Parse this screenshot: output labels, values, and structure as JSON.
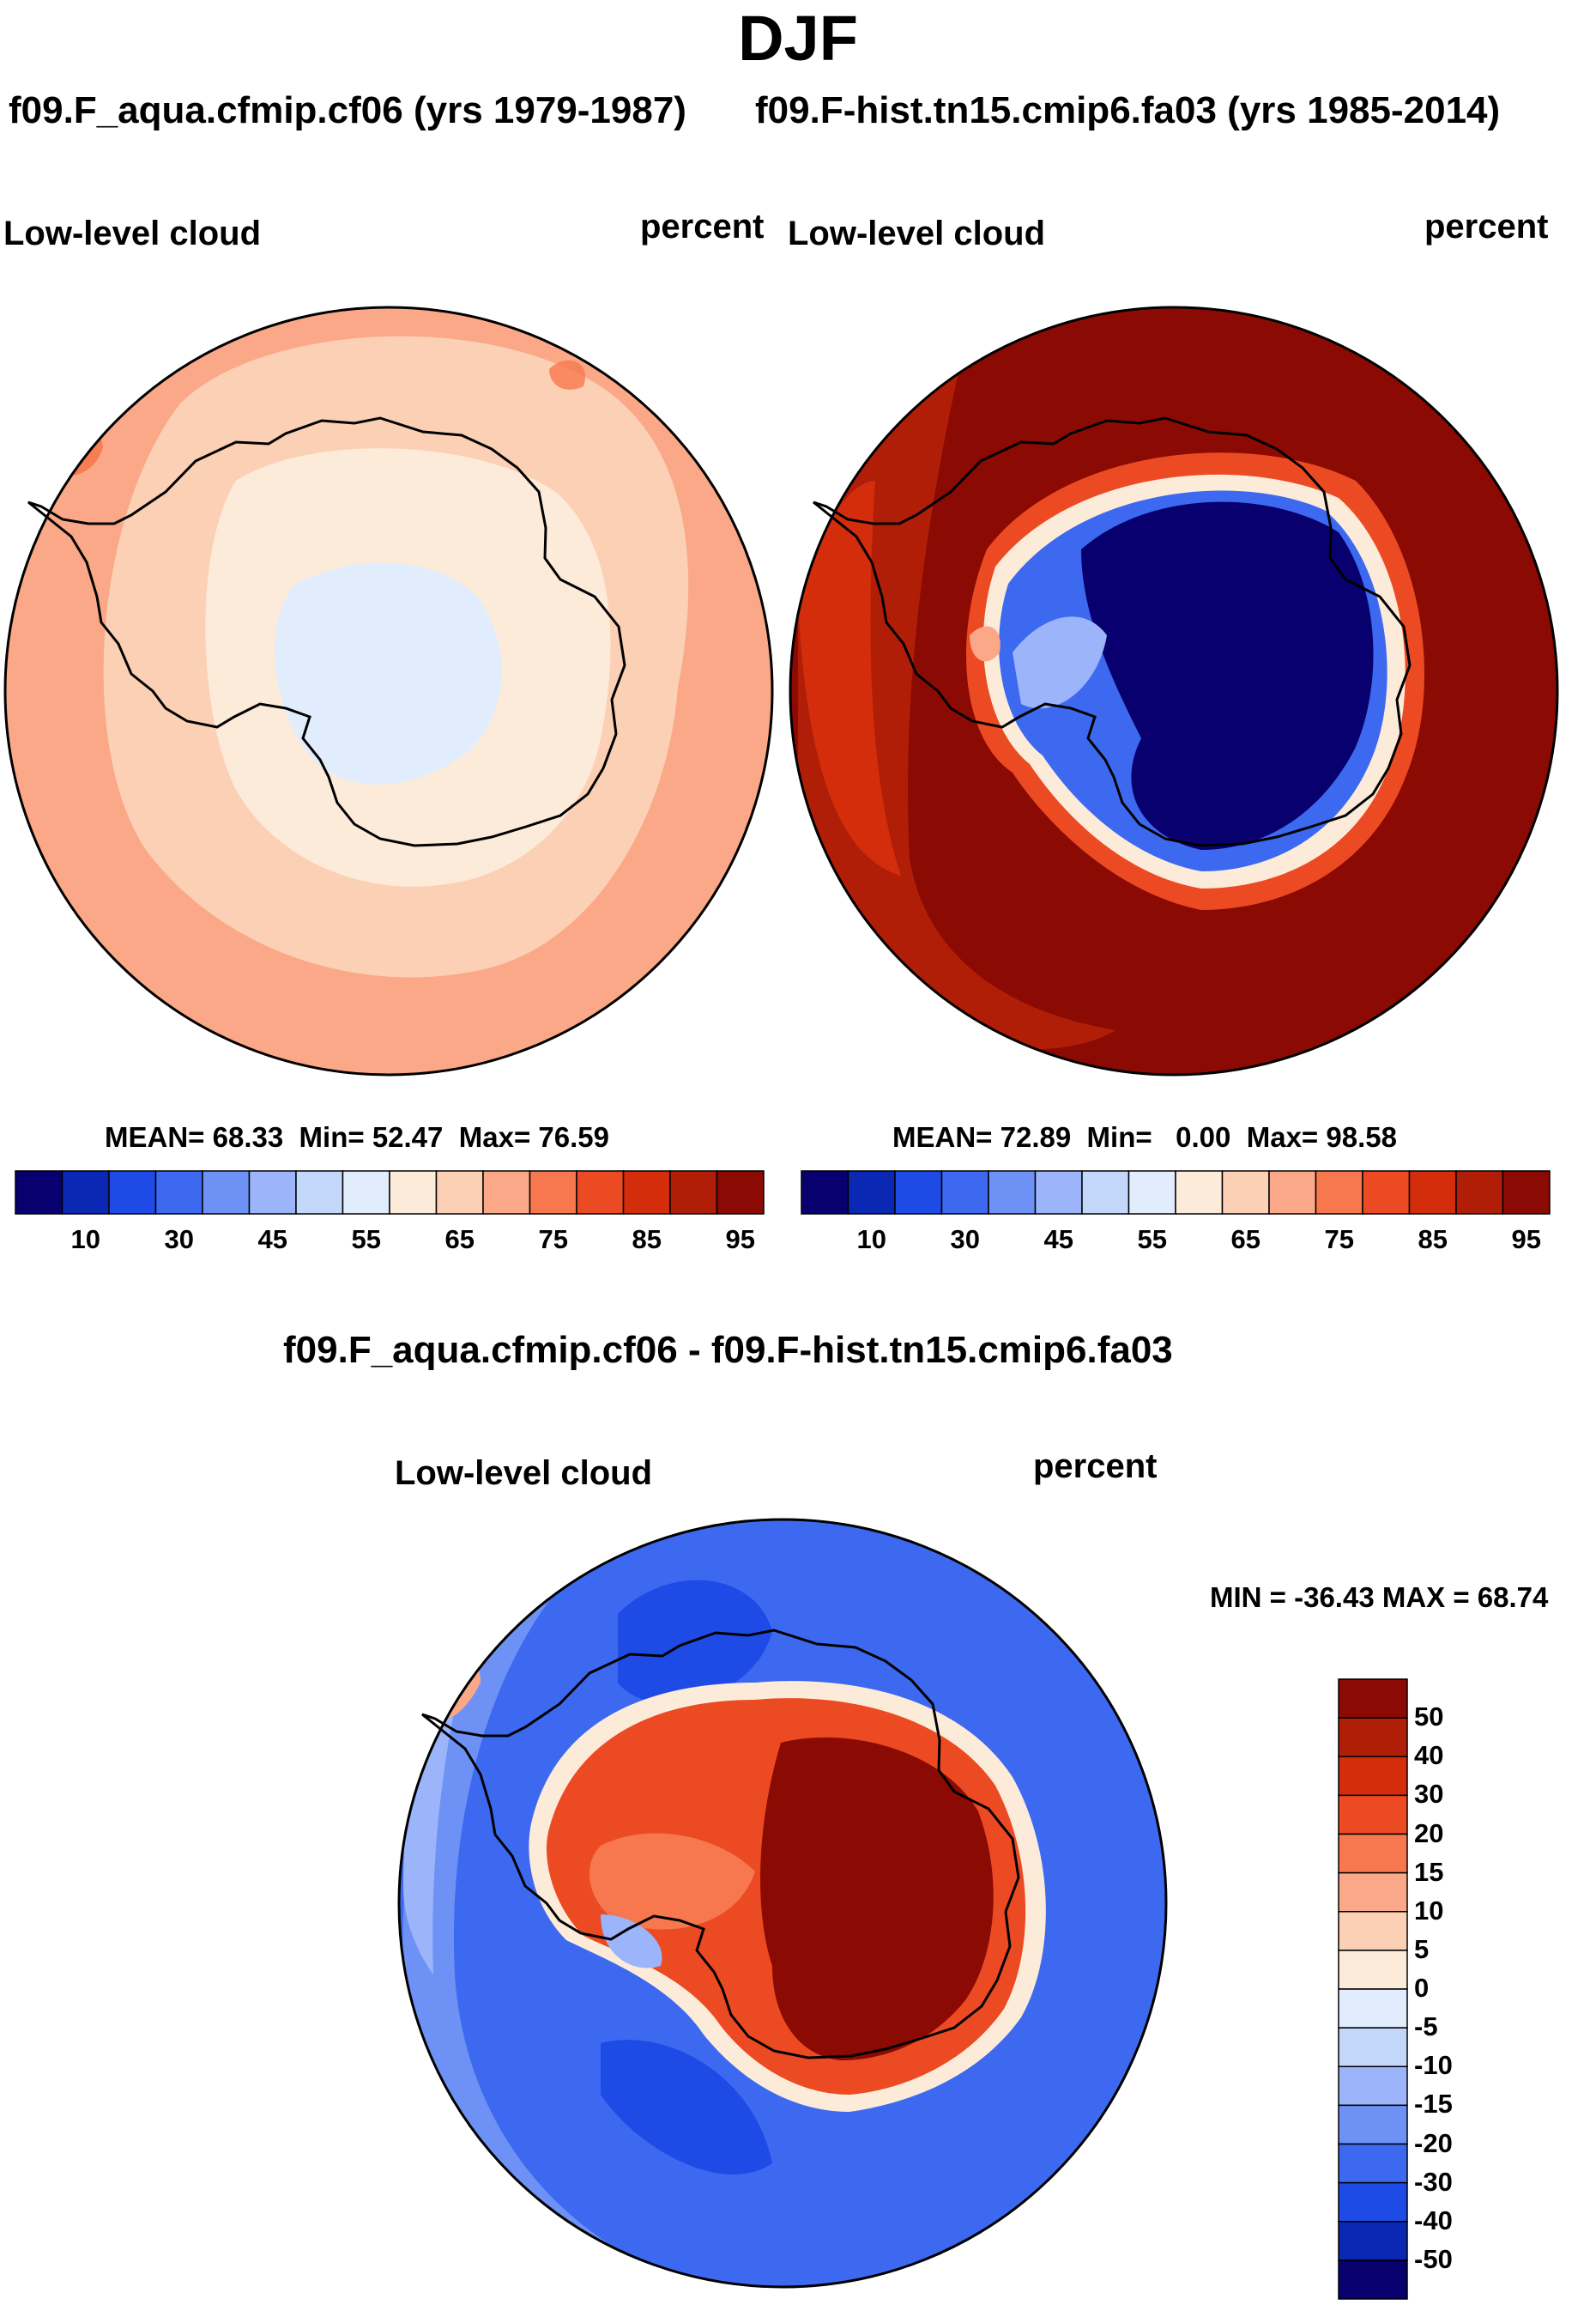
{
  "figure": {
    "title": "DJF"
  },
  "panels": [
    {
      "case_label": "f09.F_aqua.cfmip.cf06 (yrs 1979-1987)",
      "variable": "Low-level cloud",
      "units": "percent",
      "mean_label": "MEAN=",
      "mean": "68.33",
      "min_label": "Min=",
      "min": "52.47",
      "max_label": "Max=",
      "max": "76.59",
      "field": "weak contrast: ~65-75 over ocean, 60-65 near coast, 55-60 over interior Antarctica"
    },
    {
      "case_label": "f09.F-hist.tn15.cmip6.fa03 (yrs 1985-2014)",
      "variable": "Low-level cloud",
      "units": "percent",
      "mean_label": "MEAN=",
      "mean": "72.89",
      "min_label": "Min=",
      "min": "0.00",
      "max_label": "Max=",
      "max": "98.58",
      "field": "strong contrast: 85-98 over Southern Ocean, near 0-10 over East Antarctic plateau"
    }
  ],
  "colorbar_abs": {
    "ticks": [
      "10",
      "30",
      "45",
      "55",
      "65",
      "75",
      "85",
      "95"
    ],
    "colors": [
      "#08006e",
      "#0a28b4",
      "#1e4be6",
      "#3c69f0",
      "#6e91f5",
      "#9bb4fa",
      "#c3d7fa",
      "#e1edfc",
      "#fdebda",
      "#fcd0b5",
      "#faa887",
      "#f7784e",
      "#ec4a22",
      "#d32d0c",
      "#b01e07",
      "#8b0a03"
    ]
  },
  "diff_panel": {
    "title": "f09.F_aqua.cfmip.cf06 - f09.F-hist.tn15.cmip6.fa03",
    "variable": "Low-level cloud",
    "units": "percent",
    "minmax_label": "MIN = -36.43 MAX =  68.74",
    "colorbar": {
      "ticks": [
        "50",
        "40",
        "30",
        "20",
        "15",
        "10",
        "5",
        "0",
        "-5",
        "-10",
        "-15",
        "-20",
        "-30",
        "-40",
        "-50"
      ],
      "colors": [
        "#8b0a03",
        "#b01e07",
        "#d32d0c",
        "#ec4a22",
        "#f7784e",
        "#faa887",
        "#fcd0b5",
        "#fdebda",
        "#e1edfc",
        "#c3d7fa",
        "#9bb4fa",
        "#6e91f5",
        "#3c69f0",
        "#1e4be6",
        "#0a28b4",
        "#08006e"
      ]
    }
  },
  "chart_data": [
    {
      "type": "heatmap",
      "title": "Low-level cloud",
      "subtitle": "f09.F_aqua.cfmip.cf06 (yrs 1979-1987)",
      "units": "percent",
      "projection": "south polar stereographic",
      "stats": {
        "mean": 68.33,
        "min": 52.47,
        "max": 76.59
      },
      "contour_levels": [
        10,
        30,
        45,
        55,
        65,
        75,
        85,
        95
      ]
    },
    {
      "type": "heatmap",
      "title": "Low-level cloud",
      "subtitle": "f09.F-hist.tn15.cmip6.fa03 (yrs 1985-2014)",
      "units": "percent",
      "projection": "south polar stereographic",
      "stats": {
        "mean": 72.89,
        "min": 0.0,
        "max": 98.58
      },
      "contour_levels": [
        10,
        30,
        45,
        55,
        65,
        75,
        85,
        95
      ]
    },
    {
      "type": "heatmap",
      "title": "Low-level cloud",
      "subtitle": "f09.F_aqua.cfmip.cf06 - f09.F-hist.tn15.cmip6.fa03",
      "units": "percent",
      "projection": "south polar stereographic",
      "stats": {
        "min": -36.43,
        "max": 68.74
      },
      "contour_levels": [
        -50,
        -40,
        -30,
        -20,
        -15,
        -10,
        -5,
        0,
        5,
        10,
        15,
        20,
        30,
        40,
        50
      ]
    }
  ]
}
